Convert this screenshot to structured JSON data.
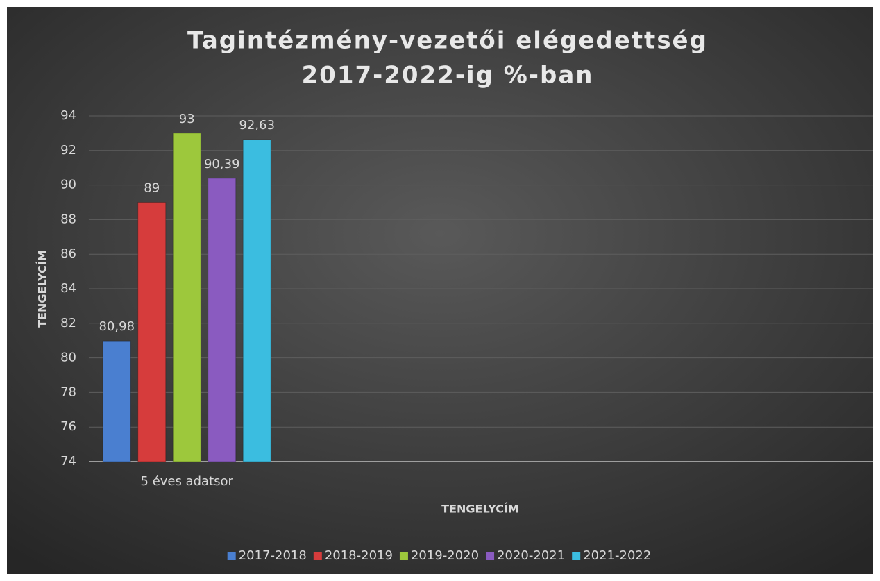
{
  "chart_data": {
    "type": "bar",
    "title": [
      "Tagintézmény-vezetői  elégedettség",
      "2017-2022-ig %-ban"
    ],
    "x_label": "TENGELYCÍM",
    "y_label": "TENGELYCÍM",
    "categories": [
      "5 éves adatsor",
      null,
      null,
      null
    ],
    "series": [
      {
        "name": "2017-2018",
        "color": "#4a7fd0",
        "values": [
          80.98,
          null,
          null,
          null
        ],
        "value_labels": [
          "80,98",
          null,
          null,
          null
        ]
      },
      {
        "name": "2018-2019",
        "color": "#d63c3c",
        "values": [
          89,
          null,
          null,
          null
        ]
      },
      {
        "name": "2019-2020",
        "color": "#9dc83c",
        "values": [
          93,
          null,
          null,
          null
        ]
      },
      {
        "name": "2020-2021",
        "color": "#8a5bc0",
        "values": [
          90.39,
          null,
          null,
          null
        ],
        "value_labels": [
          "90,39",
          null,
          null,
          null
        ]
      },
      {
        "name": "2021-2022",
        "color": "#3bbde0",
        "values": [
          92.63,
          null,
          null,
          null
        ],
        "value_labels": [
          "92,63",
          null,
          null,
          null
        ]
      }
    ],
    "ylim": [
      74,
      94
    ],
    "yticks": [
      74,
      76,
      78,
      80,
      82,
      84,
      86,
      88,
      90,
      92,
      94
    ],
    "grid": true,
    "legend": "bottom"
  }
}
